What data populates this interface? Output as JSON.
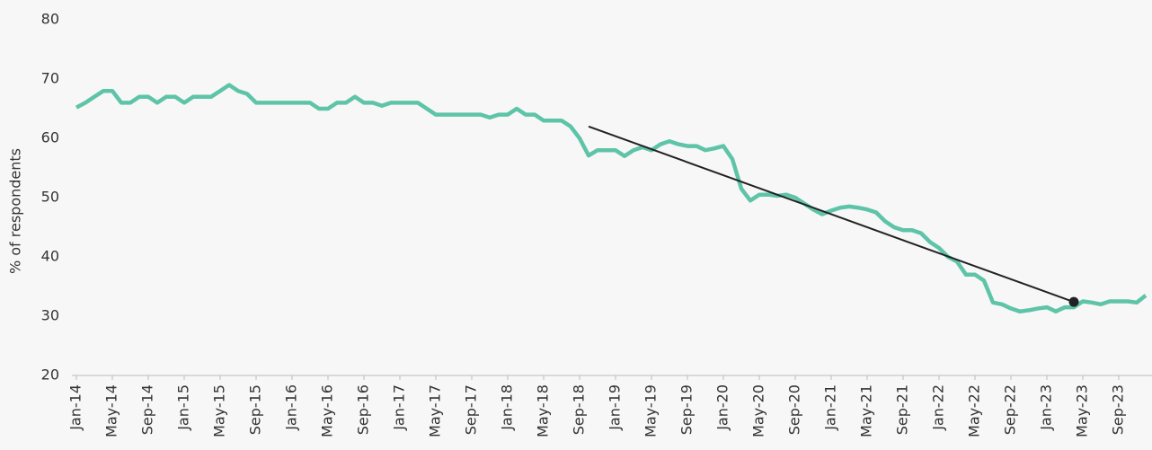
{
  "chart_data": {
    "type": "line",
    "y_label": "% of respondents",
    "categories": [
      "Jan-14",
      null,
      null,
      null,
      "May-14",
      null,
      null,
      null,
      "Sep-14",
      null,
      null,
      null,
      "Jan-15",
      null,
      null,
      null,
      "May-15",
      null,
      null,
      null,
      "Sep-15",
      null,
      null,
      null,
      "Jan-16",
      null,
      null,
      null,
      "May-16",
      null,
      null,
      null,
      "Sep-16",
      null,
      null,
      null,
      "Jan-17",
      null,
      null,
      null,
      "May-17",
      null,
      null,
      null,
      "Sep-17",
      null,
      null,
      null,
      "Jan-18",
      null,
      null,
      null,
      "May-18",
      null,
      null,
      null,
      "Sep-18",
      null,
      null,
      null,
      "Jan-19",
      null,
      null,
      null,
      "May-19",
      null,
      null,
      null,
      "Sep-19",
      null,
      null,
      null,
      "Jan-20",
      null,
      null,
      null,
      "May-20",
      null,
      null,
      null,
      "Sep-20",
      null,
      null,
      null,
      "Jan-21",
      null,
      null,
      null,
      "May-21",
      null,
      null,
      null,
      "Sep-21",
      null,
      null,
      null,
      "Jan-22",
      null,
      null,
      null,
      "May-22",
      null,
      null,
      null,
      "Sep-22",
      null,
      null,
      null,
      "Jan-23",
      null,
      null,
      null,
      "May-23",
      null,
      null,
      null,
      "Sep-23",
      null,
      null,
      null
    ],
    "series": [
      {
        "color": "#5ec4a8",
        "values": [
          65.2,
          66,
          67,
          68,
          68,
          66,
          66,
          67,
          67,
          66,
          67,
          67,
          66,
          67,
          67,
          67,
          68,
          69,
          68,
          67.5,
          66,
          66,
          66,
          66,
          66,
          66,
          66,
          65,
          65,
          66,
          66,
          67,
          66,
          66,
          65.5,
          66,
          66,
          66,
          66,
          65,
          64,
          64,
          64,
          64,
          64,
          64,
          63.5,
          64,
          64,
          65,
          64,
          64,
          63,
          63,
          63,
          62,
          60,
          57.1,
          58,
          58,
          58,
          57,
          58,
          58.5,
          58,
          59,
          59.5,
          59,
          58.7,
          58.7,
          58,
          58.3,
          58.7,
          56.5,
          51.5,
          49.5,
          50.5,
          50.5,
          50.3,
          50.5,
          50,
          49,
          48,
          47.2,
          47.8,
          48.3,
          48.5,
          48.3,
          48,
          47.5,
          46,
          45,
          44.5,
          44.5,
          44,
          42.5,
          41.5,
          40,
          39.2,
          37,
          37,
          36,
          32.3,
          32,
          31.3,
          30.8,
          31,
          31.3,
          31.5,
          30.8,
          31.5,
          31.5,
          32.5,
          32.3,
          32,
          32.5,
          32.5,
          32.5,
          32.3,
          33.5
        ]
      }
    ],
    "trend": {
      "start": 57,
      "end": 111,
      "values": [
        62,
        32.4
      ],
      "color": "#222222"
    },
    "ylim": [
      20,
      80
    ],
    "yticks": [
      20,
      30,
      40,
      50,
      60,
      70,
      80
    ]
  }
}
